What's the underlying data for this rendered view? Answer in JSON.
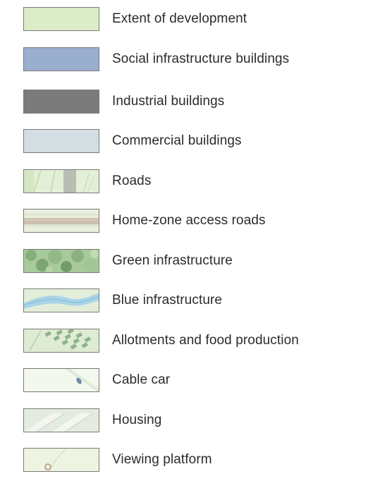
{
  "legend": {
    "items": [
      {
        "key": "extent",
        "label": "Extent of development",
        "color": "#dcecc6"
      },
      {
        "key": "social",
        "label": "Social infrastructure buildings",
        "color": "#9aaed0"
      },
      {
        "key": "industrial",
        "label": "Industrial buildings",
        "color": "#7b7b7b"
      },
      {
        "key": "commercial",
        "label": "Commercial buildings",
        "color": "#d3dde2"
      },
      {
        "key": "roads",
        "label": "Roads",
        "color": "#e3efd6"
      },
      {
        "key": "homezone",
        "label": "Home-zone access roads",
        "color": "#e6e6d8"
      },
      {
        "key": "green",
        "label": "Green infrastructure",
        "color": "#8fb884"
      },
      {
        "key": "blue",
        "label": "Blue infrastructure",
        "color": "#cfe5ee"
      },
      {
        "key": "allotments",
        "label": "Allotments and food production",
        "color": "#d9ead0"
      },
      {
        "key": "cablecar",
        "label": "Cable car",
        "color": "#f3f8ee"
      },
      {
        "key": "housing",
        "label": "Housing",
        "color": "#e4ecdf"
      },
      {
        "key": "viewing",
        "label": "Viewing platform",
        "color": "#eef4e2"
      }
    ]
  }
}
